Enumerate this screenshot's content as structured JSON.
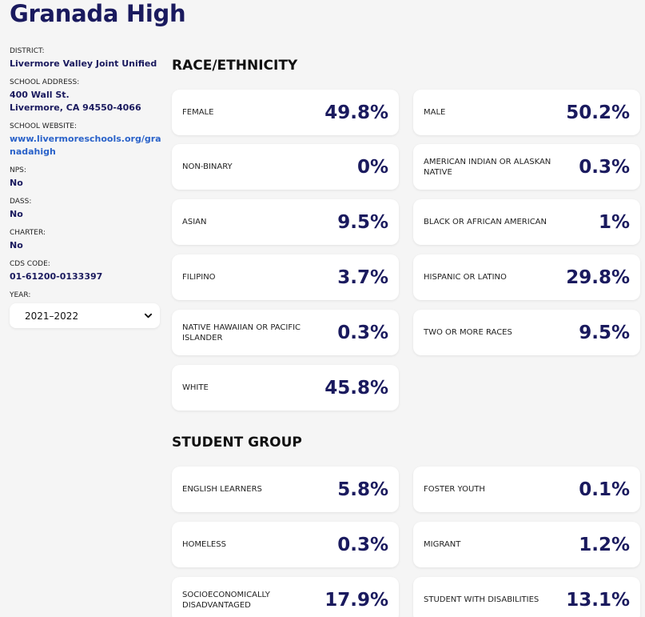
{
  "school": {
    "name": "Granada High"
  },
  "sidebar": {
    "district_label": "DISTRICT:",
    "district": "Livermore Valley Joint Unified",
    "address_label": "SCHOOL ADDRESS:",
    "address_line1": "400 Wall St.",
    "address_line2": "Livermore, CA 94550-4066",
    "website_label": "SCHOOL WEBSITE:",
    "website": "www.livermoreschools.org/granadahigh",
    "nps_label": "NPS:",
    "nps": "No",
    "dass_label": "DASS:",
    "dass": "No",
    "charter_label": "CHARTER:",
    "charter": "No",
    "cds_label": "CDS CODE:",
    "cds": "01-61200-0133397",
    "year_label": "YEAR:",
    "year": "2021–2022"
  },
  "race": {
    "title": "RACE/ETHNICITY",
    "cards": [
      {
        "label": "FEMALE",
        "value": "49.8%"
      },
      {
        "label": "MALE",
        "value": "50.2%"
      },
      {
        "label": "NON-BINARY",
        "value": "0%"
      },
      {
        "label": "AMERICAN INDIAN OR ALASKAN NATIVE",
        "value": "0.3%"
      },
      {
        "label": "ASIAN",
        "value": "9.5%"
      },
      {
        "label": "BLACK OR AFRICAN AMERICAN",
        "value": "1%"
      },
      {
        "label": "FILIPINO",
        "value": "3.7%"
      },
      {
        "label": "HISPANIC OR LATINO",
        "value": "29.8%"
      },
      {
        "label": "NATIVE HAWAIIAN OR PACIFIC ISLANDER",
        "value": "0.3%"
      },
      {
        "label": "TWO OR MORE RACES",
        "value": "9.5%"
      },
      {
        "label": "WHITE",
        "value": "45.8%"
      }
    ]
  },
  "group": {
    "title": "STUDENT GROUP",
    "cards": [
      {
        "label": "ENGLISH LEARNERS",
        "value": "5.8%"
      },
      {
        "label": "FOSTER YOUTH",
        "value": "0.1%"
      },
      {
        "label": "HOMELESS",
        "value": "0.3%"
      },
      {
        "label": "MIGRANT",
        "value": "1.2%"
      },
      {
        "label": "SOCIOECONOMICALLY DISADVANTAGED",
        "value": "17.9%"
      },
      {
        "label": "STUDENT WITH DISABILITIES",
        "value": "13.1%"
      }
    ]
  },
  "colors": {
    "accent": "#1a1a5e",
    "link": "#2a62c9",
    "background": "#f5f5f5"
  }
}
